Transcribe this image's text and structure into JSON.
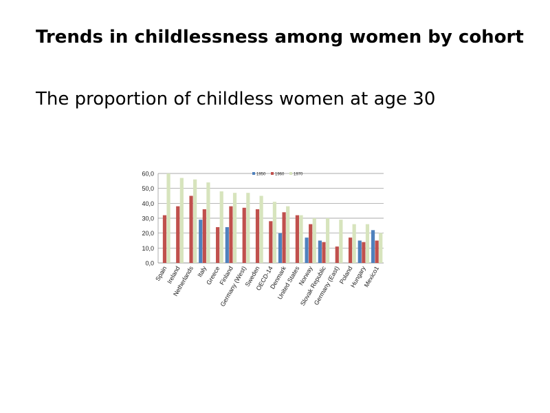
{
  "slide": {
    "title": "Trends in childlessness among women by cohort",
    "subtitle": "The proportion of childless women at age 30"
  },
  "chart_data": {
    "type": "bar",
    "title": "",
    "xlabel": "",
    "ylabel": "",
    "ylim": [
      0,
      60
    ],
    "yticks": [
      "0,0",
      "10,0",
      "20,0",
      "30,0",
      "40,0",
      "50,0",
      "60,0"
    ],
    "grid": true,
    "legend_position": "top-center",
    "categories": [
      "Spain",
      "Ireland",
      "Netherlands",
      "Italy",
      "Greece",
      "Finland",
      "Germany (West)",
      "Sweden",
      "OECD-14",
      "Denmark",
      "United States",
      "Norway",
      "Slovak Republic",
      "Germany (East)",
      "Poland",
      "Hungary",
      "Mexico1"
    ],
    "series": [
      {
        "name": "1950",
        "color": "#4f81bd",
        "values": [
          null,
          null,
          null,
          29,
          null,
          24,
          null,
          null,
          null,
          20,
          null,
          17,
          15,
          null,
          null,
          15,
          22
        ]
      },
      {
        "name": "1960",
        "color": "#c0504d",
        "values": [
          32,
          38,
          45,
          36,
          24,
          38,
          37,
          36,
          28,
          34,
          32,
          26,
          14,
          11,
          17,
          14,
          15
        ]
      },
      {
        "name": "1970",
        "color": "#d7e4bd",
        "values": [
          60,
          57,
          56,
          54,
          48,
          47,
          47,
          45,
          41,
          38,
          32,
          30,
          30,
          29,
          26,
          26,
          20
        ]
      }
    ]
  }
}
